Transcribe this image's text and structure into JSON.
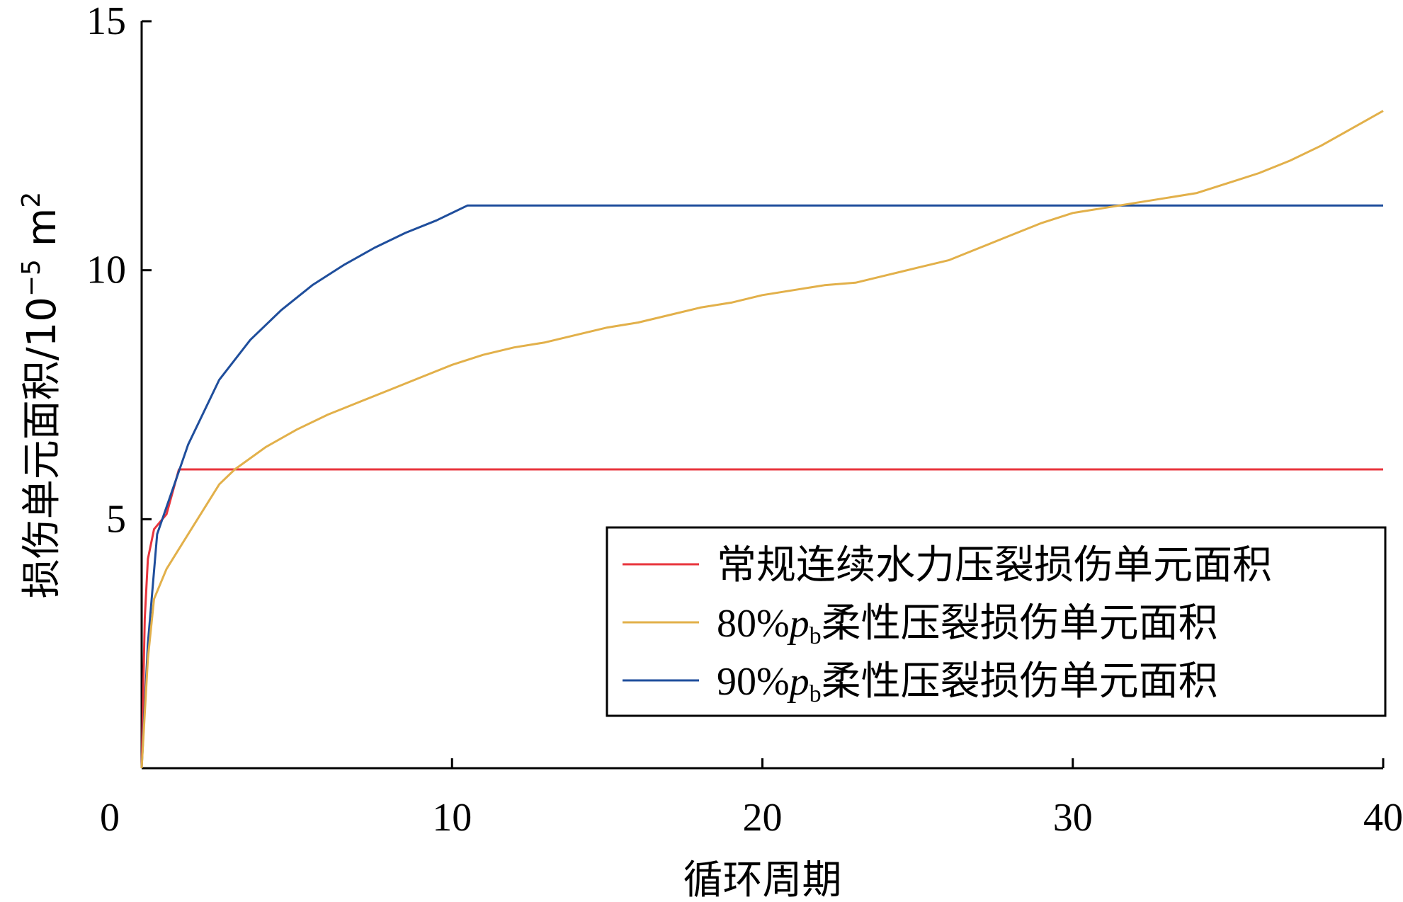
{
  "chart_data": {
    "type": "line",
    "xlabel": "循环周期",
    "ylabel_text": "损伤单元面积/10",
    "ylabel_exponent": "−5",
    "ylabel_unit": " m",
    "ylabel_unit_exp": "2",
    "xlim": [
      0,
      40
    ],
    "ylim": [
      0,
      15
    ],
    "xticks": [
      0,
      10,
      20,
      30,
      40
    ],
    "yticks": [
      5,
      10,
      15
    ],
    "grid": false,
    "legend_position": "bottom-right",
    "series": [
      {
        "name": "常规连续水力压裂损伤单元面积",
        "color": "#e8343c",
        "x": [
          0,
          0.05,
          0.1,
          0.2,
          0.4,
          0.8,
          1.2,
          40
        ],
        "y": [
          0,
          1.5,
          3.0,
          4.2,
          4.8,
          5.1,
          6.0,
          6.0
        ]
      },
      {
        "name": "90%pb柔性压裂损伤单元面积",
        "name_parts": {
          "prefix": "90%",
          "var": "p",
          "sub": "b",
          "suffix": "柔性压裂损伤单元面积"
        },
        "color": "#1f4e9c",
        "x": [
          0,
          0.2,
          0.5,
          1.5,
          2.5,
          3.5,
          4.5,
          5.5,
          6.5,
          7.5,
          8.5,
          9.5,
          10.5,
          40
        ],
        "y": [
          0,
          2.5,
          4.7,
          6.5,
          7.8,
          8.6,
          9.2,
          9.7,
          10.1,
          10.45,
          10.75,
          11.0,
          11.3,
          11.3
        ]
      },
      {
        "name": "80%pb柔性压裂损伤单元面积",
        "name_parts": {
          "prefix": "80%",
          "var": "p",
          "sub": "b",
          "suffix": "柔性压裂损伤单元面积"
        },
        "color": "#e2b04a",
        "x": [
          0,
          0.2,
          0.4,
          0.8,
          1.5,
          2.5,
          3,
          4,
          5,
          6,
          7,
          8,
          9,
          10,
          11,
          12,
          13,
          14,
          15,
          16,
          17,
          18,
          19,
          20,
          21,
          22,
          23,
          24,
          25,
          26,
          27,
          28,
          29,
          30,
          31,
          32,
          33,
          34,
          35,
          36,
          37,
          38,
          39,
          40
        ],
        "y": [
          0,
          2.2,
          3.4,
          4.0,
          4.7,
          5.7,
          6.0,
          6.45,
          6.8,
          7.1,
          7.35,
          7.6,
          7.85,
          8.1,
          8.3,
          8.45,
          8.55,
          8.7,
          8.85,
          8.95,
          9.1,
          9.25,
          9.35,
          9.5,
          9.6,
          9.7,
          9.75,
          9.9,
          10.05,
          10.2,
          10.45,
          10.7,
          10.95,
          11.15,
          11.25,
          11.35,
          11.45,
          11.55,
          11.75,
          11.95,
          12.2,
          12.5,
          12.85,
          13.2
        ]
      }
    ]
  }
}
